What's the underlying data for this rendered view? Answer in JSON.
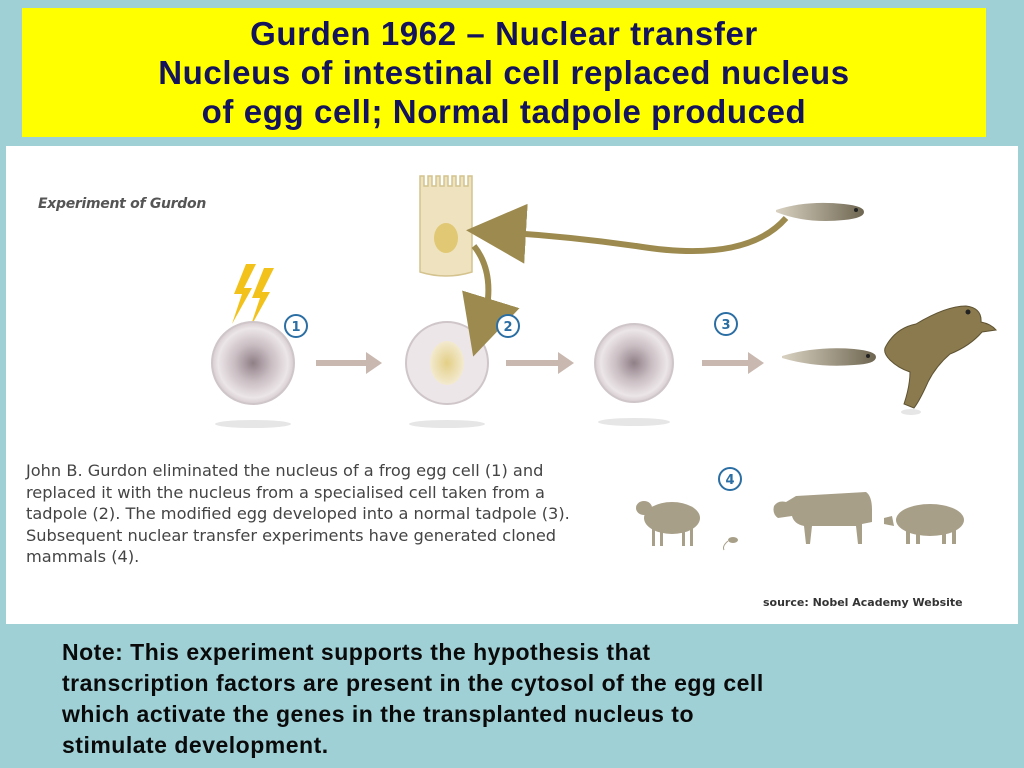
{
  "title": {
    "lines": [
      "Gurden 1962 – Nuclear transfer",
      "Nucleus of intestinal cell replaced nucleus",
      "of egg cell; Normal tadpole produced"
    ]
  },
  "figure": {
    "heading": "Experiment of Gurdon",
    "step_labels": [
      "1",
      "2",
      "3",
      "4"
    ],
    "caption_lines": [
      "John B. Gurdon eliminated the nucleus of a frog egg cell (1) and",
      "replaced it with the nucleus from a specialised cell taken from a",
      "tadpole (2). The modified egg developed into a normal tadpole (3).",
      "Subsequent nuclear transfer experiments have generated cloned",
      "mammals (4)."
    ],
    "source": "source: Nobel Academy Website"
  },
  "note": {
    "lines": [
      "Note:  This experiment supports the hypothesis that",
      "transcription factors are present in the cytosol of the egg cell",
      "which activate the genes in the transplanted nucleus to",
      "stimulate development."
    ]
  },
  "colors": {
    "background": "#9fd0d6",
    "title_box": "#ffff00",
    "title_text": "#14145c",
    "badge_blue": "#2b6ea3",
    "arrow_olive": "#9c8a4e",
    "arrow_gray": "#c8b8b0"
  },
  "icons": [
    "lightning-icon",
    "egg-cell-icon",
    "intestinal-cell-icon",
    "tadpole-icon",
    "frog-icon",
    "sheep-icon",
    "mouse-icon",
    "cow-icon",
    "pig-icon"
  ]
}
